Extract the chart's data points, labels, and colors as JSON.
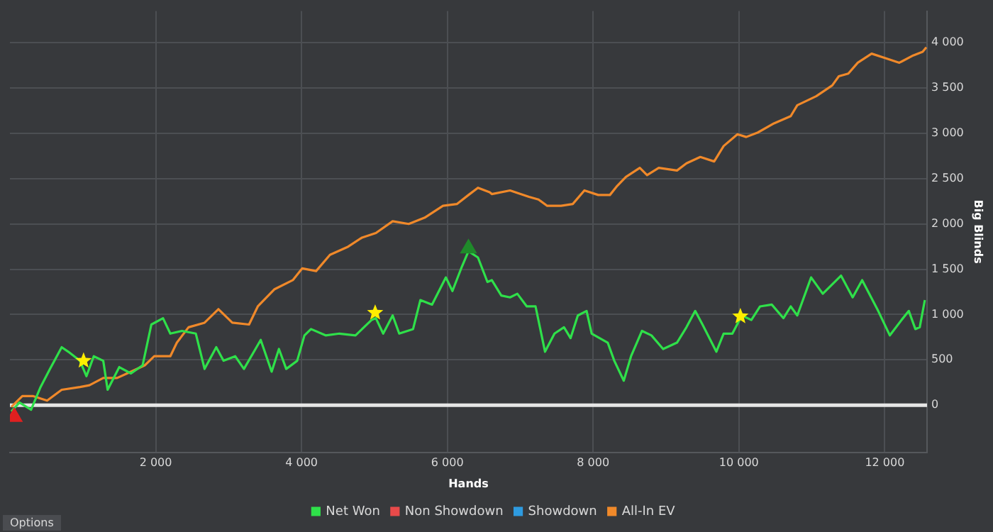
{
  "chart_data": {
    "type": "line",
    "xlabel": "Hands",
    "ylabel": "Big Blinds",
    "xlim": [
      0,
      12580
    ],
    "ylim": [
      -520,
      4350
    ],
    "xticks": [
      {
        "value": 2000,
        "label": "2 000"
      },
      {
        "value": 4000,
        "label": "4 000"
      },
      {
        "value": 6000,
        "label": "6 000"
      },
      {
        "value": 8000,
        "label": "8 000"
      },
      {
        "value": 10000,
        "label": "10 000"
      },
      {
        "value": 12000,
        "label": "12 000"
      }
    ],
    "yticks": [
      0,
      500,
      {
        "value": 1000,
        "label": "1 000"
      },
      {
        "value": 1500,
        "label": "1 500"
      },
      {
        "value": 2000,
        "label": "2 000"
      },
      {
        "value": 2500,
        "label": "2 500"
      },
      {
        "value": 3000,
        "label": "3 000"
      },
      {
        "value": 3500,
        "label": "3 500"
      },
      {
        "value": 4000,
        "label": "4 000"
      }
    ],
    "grid": true,
    "legend": "bottom",
    "marker": "none",
    "line_style": "solid",
    "ref_lines": [
      {
        "axis": "y",
        "value": 0,
        "color": "#e6e6e6"
      }
    ],
    "annotations": [
      "Options"
    ],
    "series": [
      {
        "name": "Net Won",
        "color": "#2fe04a",
        "x": [
          20,
          130,
          290,
          420,
          550,
          710,
          800,
          960,
          1050,
          1150,
          1280,
          1340,
          1500,
          1660,
          1820,
          1940,
          2100,
          2200,
          2360,
          2550,
          2670,
          2830,
          2930,
          3090,
          3210,
          3440,
          3590,
          3690,
          3790,
          3940,
          4040,
          4130,
          4330,
          4520,
          4740,
          4960,
          5020,
          5120,
          5250,
          5340,
          5530,
          5630,
          5790,
          5980,
          6070,
          6200,
          6290,
          6420,
          6550,
          6610,
          6740,
          6860,
          6960,
          7090,
          7210,
          7340,
          7470,
          7600,
          7690,
          7790,
          7910,
          7980,
          8200,
          8290,
          8420,
          8520,
          8670,
          8800,
          8960,
          9150,
          9280,
          9400,
          9500,
          9690,
          9790,
          9910,
          10040,
          10170,
          10290,
          10450,
          10610,
          10710,
          10800,
          10990,
          11150,
          11400,
          11560,
          11690,
          11910,
          12070,
          12230,
          12330,
          12420,
          12480,
          12550
        ],
        "values": [
          -70,
          30,
          -50,
          200,
          400,
          640,
          590,
          490,
          320,
          540,
          490,
          170,
          420,
          350,
          440,
          890,
          960,
          790,
          820,
          790,
          400,
          640,
          490,
          540,
          400,
          720,
          370,
          620,
          400,
          490,
          770,
          840,
          770,
          790,
          770,
          940,
          960,
          790,
          990,
          790,
          840,
          1160,
          1110,
          1410,
          1260,
          1530,
          1700,
          1630,
          1360,
          1380,
          1210,
          1190,
          1230,
          1090,
          1090,
          590,
          790,
          860,
          740,
          990,
          1040,
          790,
          690,
          490,
          270,
          540,
          820,
          770,
          620,
          690,
          860,
          1040,
          890,
          590,
          790,
          790,
          990,
          940,
          1090,
          1110,
          960,
          1090,
          990,
          1410,
          1230,
          1430,
          1190,
          1380,
          1040,
          770,
          940,
          1040,
          840,
          860,
          1160
        ]
      },
      {
        "name": "Non Showdown",
        "color": "#e84a4a"
      },
      {
        "name": "Showdown",
        "color": "#2e9be0"
      },
      {
        "name": "All-In EV",
        "color": "#f0892a",
        "x": [
          20,
          170,
          320,
          510,
          710,
          960,
          1090,
          1280,
          1470,
          1660,
          1850,
          1980,
          2200,
          2290,
          2450,
          2670,
          2860,
          3050,
          3280,
          3400,
          3630,
          3880,
          4010,
          4200,
          4390,
          4640,
          4830,
          5020,
          5250,
          5470,
          5690,
          5940,
          6130,
          6290,
          6420,
          6580,
          6610,
          6860,
          7120,
          7250,
          7370,
          7560,
          7720,
          7880,
          8070,
          8230,
          8330,
          8450,
          8640,
          8740,
          8900,
          9150,
          9280,
          9470,
          9660,
          9790,
          9980,
          10100,
          10260,
          10480,
          10710,
          10800,
          11060,
          11280,
          11370,
          11500,
          11630,
          11820,
          12010,
          12200,
          12390,
          12520,
          12570
        ],
        "values": [
          -20,
          100,
          100,
          50,
          170,
          200,
          220,
          300,
          300,
          370,
          440,
          540,
          540,
          690,
          860,
          910,
          1060,
          910,
          890,
          1090,
          1280,
          1380,
          1510,
          1480,
          1660,
          1750,
          1850,
          1900,
          2030,
          2000,
          2070,
          2200,
          2220,
          2320,
          2400,
          2350,
          2330,
          2370,
          2300,
          2270,
          2200,
          2200,
          2220,
          2370,
          2320,
          2320,
          2420,
          2520,
          2620,
          2540,
          2620,
          2590,
          2670,
          2740,
          2690,
          2860,
          2990,
          2960,
          3010,
          3110,
          3190,
          3310,
          3410,
          3530,
          3630,
          3660,
          3780,
          3880,
          3830,
          3780,
          3860,
          3900,
          3950
        ]
      },
      {
        "type": "scatter",
        "marker": "star",
        "color": "#ffee00",
        "x": [
          1010,
          5010,
          10020
        ],
        "values": [
          490,
          1020,
          980
        ]
      },
      {
        "type": "scatter",
        "marker": "triangle",
        "color": "#1f8a2a",
        "x": [
          6290
        ],
        "values": [
          1730
        ]
      },
      {
        "type": "scatter",
        "marker": "triangle",
        "color": "#e02020",
        "x": [
          60
        ],
        "values": [
          -130
        ]
      }
    ]
  }
}
